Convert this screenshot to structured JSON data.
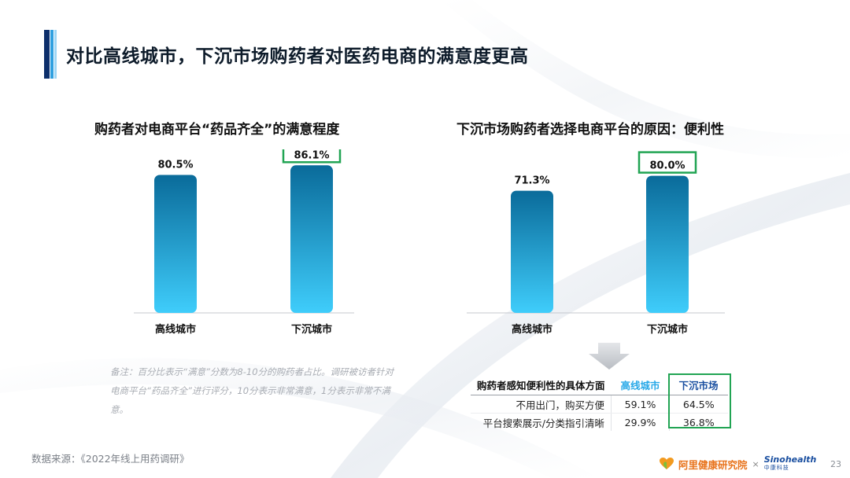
{
  "title": "对比高线城市，下沉市场购药者对医药电商的满意度更高",
  "chart_data": [
    {
      "type": "bar",
      "title": "购药者对电商平台“药品齐全”的满意程度",
      "categories": [
        "高线城市",
        "下沉城市"
      ],
      "values": [
        80.5,
        86.1
      ],
      "value_labels": [
        "80.5%",
        "86.1%"
      ],
      "highlighted_index": 1,
      "ylim": [
        0,
        100
      ]
    },
    {
      "type": "bar",
      "title": "下沉市场购药者选择电商平台的原因：便利性",
      "categories": [
        "高线城市",
        "下沉城市"
      ],
      "values": [
        71.3,
        80.0
      ],
      "value_labels": [
        "71.3%",
        "80.0%"
      ],
      "highlighted_index": 1,
      "ylim": [
        0,
        100
      ]
    },
    {
      "type": "table",
      "columns": [
        "购药者感知便利性的具体方面",
        "高线城市",
        "下沉市场"
      ],
      "rows": [
        [
          "不用出门，购买方便",
          "59.1%",
          "64.5%"
        ],
        [
          "平台搜索展示/分类指引清晰",
          "29.9%",
          "36.8%"
        ]
      ],
      "highlighted_column": 2
    }
  ],
  "note": "备注：百分比表示“满意”分数为8-10分的购药者占比。调研被访者针对电商平台“药品齐全”进行评分，10分表示非常满意，1分表示非常不满意。",
  "source": "数据来源：《2022年线上用药调研》",
  "footer": {
    "logo_ali": "阿里健康研究院",
    "separator": "×",
    "logo_sino_en": "Sinohealth",
    "logo_sino_cn": "中康科技",
    "page_number": "23"
  },
  "colors": {
    "bar_top": "#0a6b9a",
    "bar_bottom": "#3fcdfb",
    "highlight_box": "#21a453",
    "accent_dark": "#0d2f6b",
    "accent_light": "#2fa0e0"
  }
}
